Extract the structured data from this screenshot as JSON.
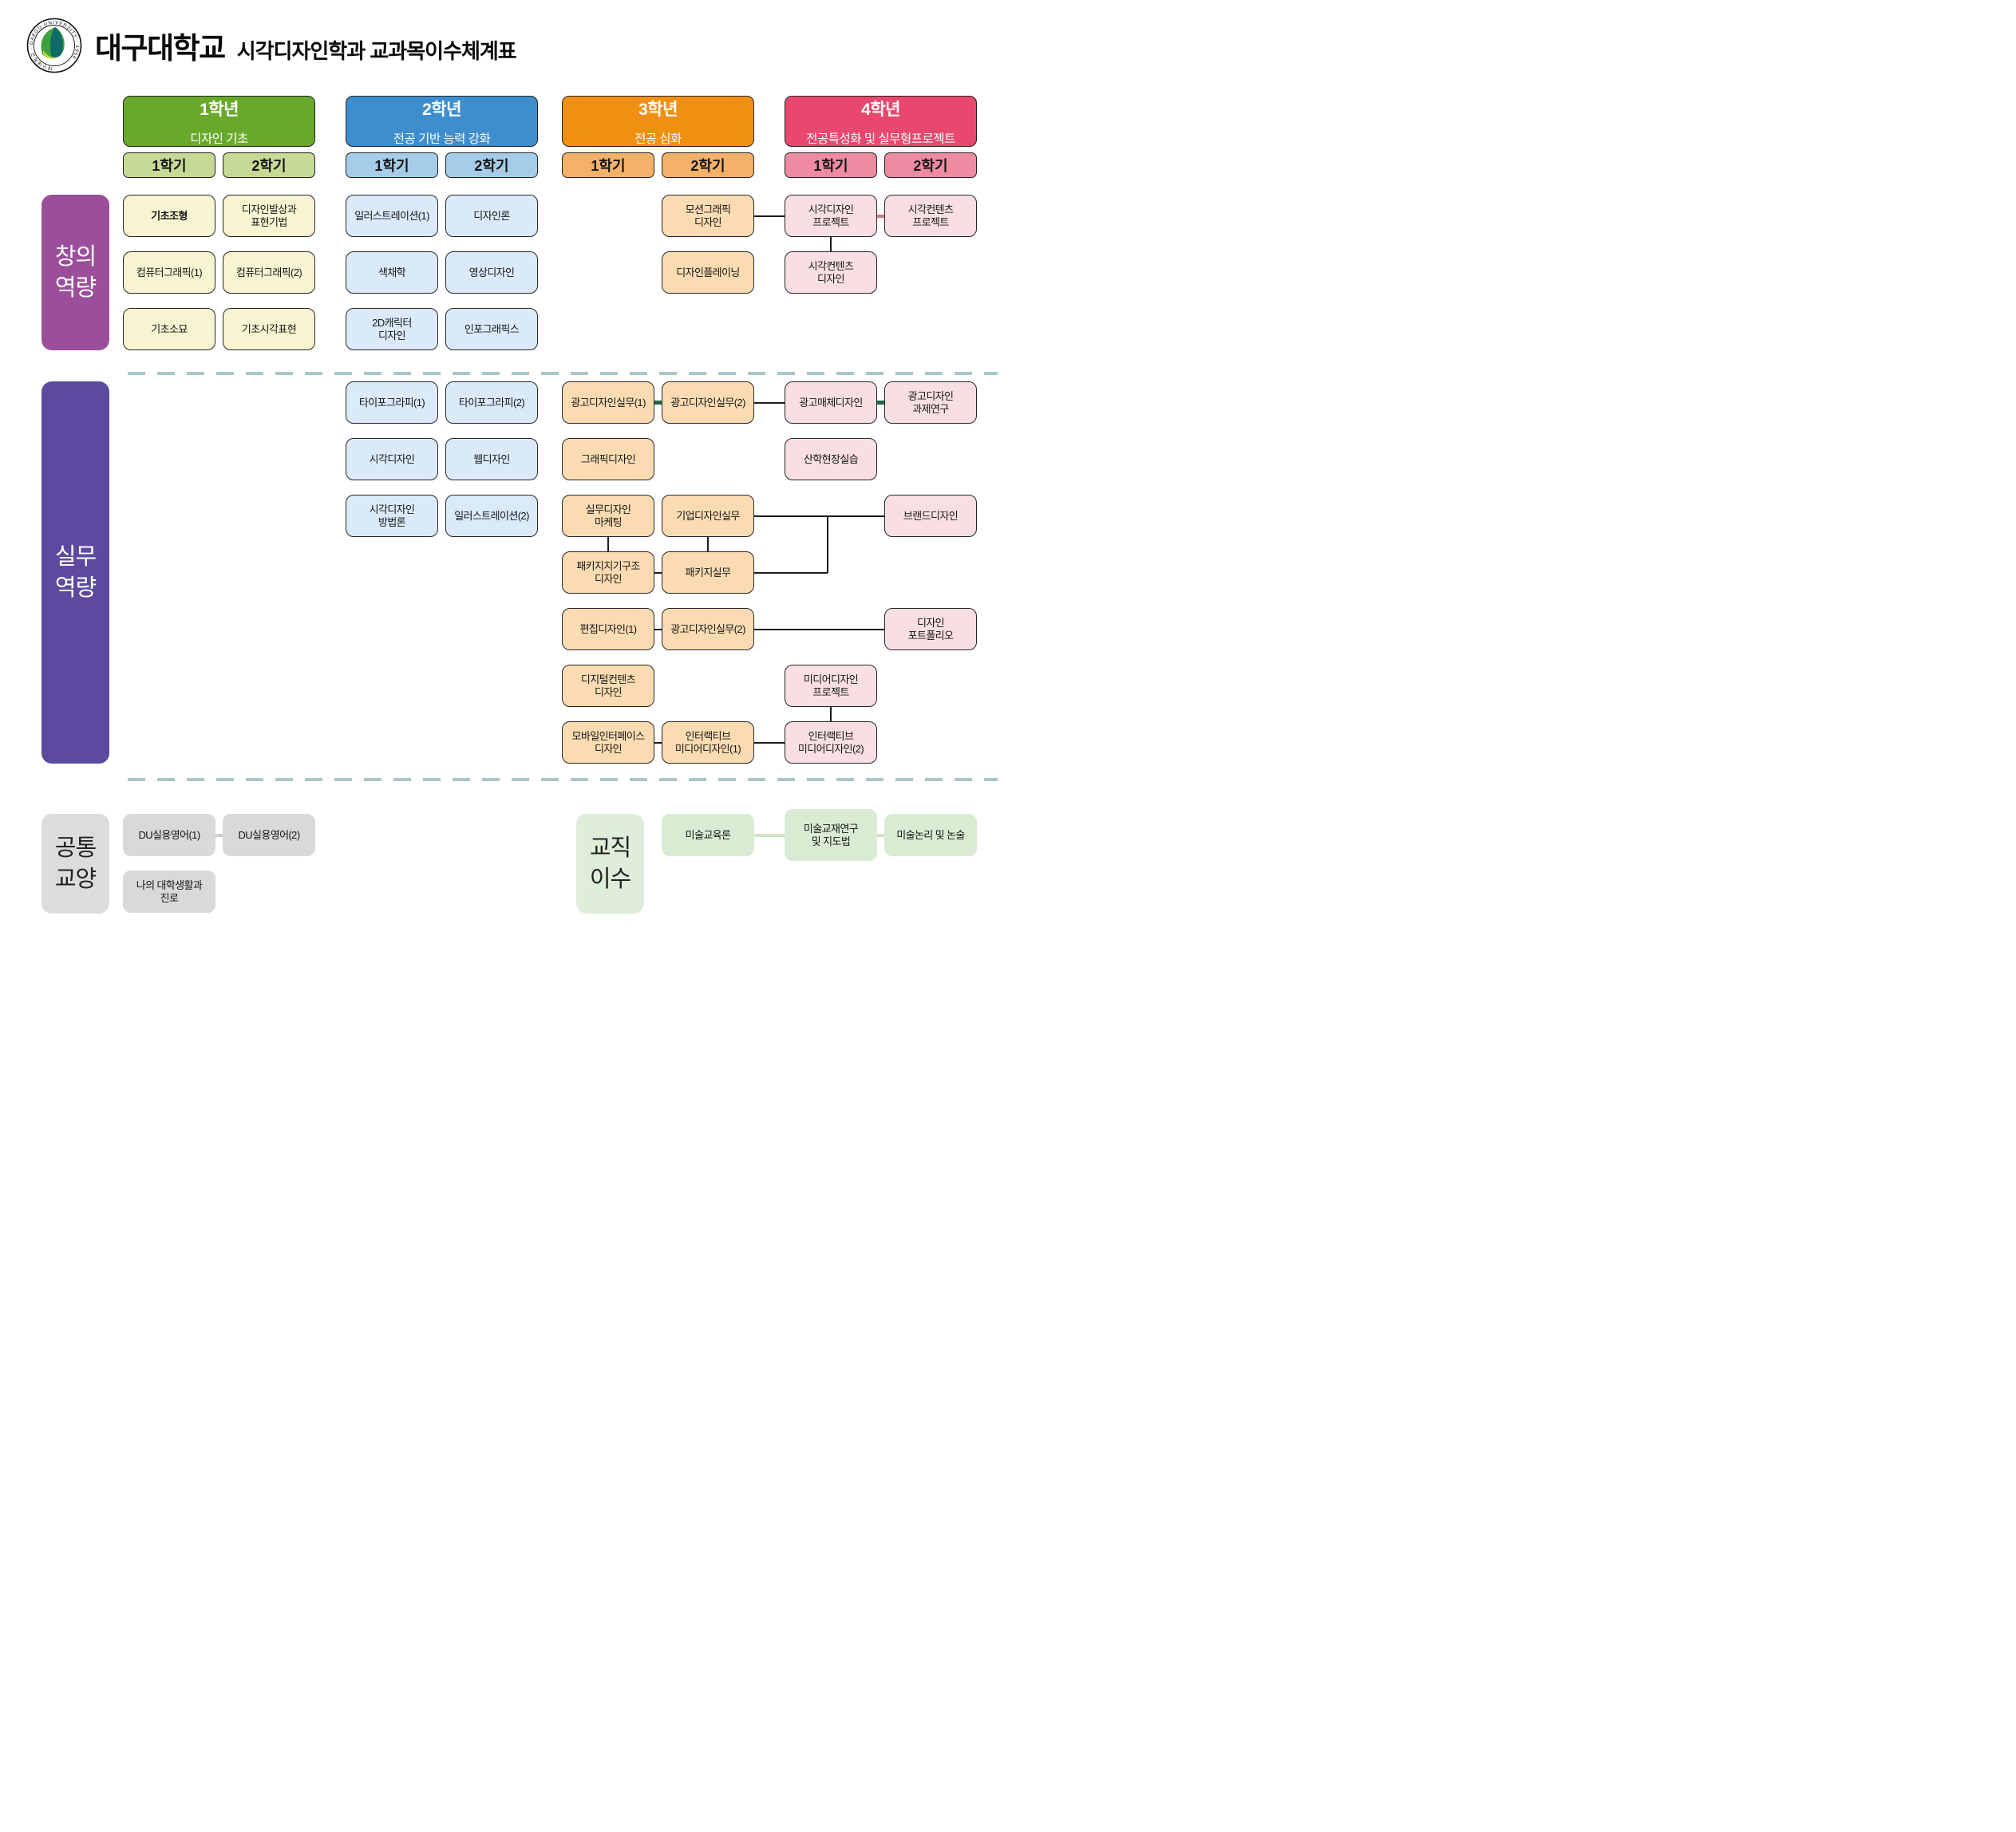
{
  "header": {
    "university": "대구대학교",
    "title": "시각디자인학과 교과목이수체계표",
    "logo_ring_text": "대구대학교 · DAEGU UNIVERSITY · 1956"
  },
  "years": [
    {
      "year": 1,
      "label": "1학년",
      "theme": "디자인 기초",
      "semesters": [
        "1학기",
        "2학기"
      ],
      "header_color": "#68a92c",
      "semester_color": "#c6da95",
      "course_color": "#f7f5d1"
    },
    {
      "year": 2,
      "label": "2학년",
      "theme": "전공 기반 능력 강화",
      "semesters": [
        "1학기",
        "2학기"
      ],
      "header_color": "#3e8ecd",
      "semester_color": "#a5cdea",
      "course_color": "#daeafa"
    },
    {
      "year": 3,
      "label": "3학년",
      "theme": "전공 심화",
      "semesters": [
        "1학기",
        "2학기"
      ],
      "header_color": "#ef9013",
      "semester_color": "#f4b169",
      "course_color": "#fbdcb2"
    },
    {
      "year": 4,
      "label": "4학년",
      "theme": "전공특성화 및 실무형프로젝트",
      "semesters": [
        "1학기",
        "2학기"
      ],
      "header_color": "#e8486e",
      "semester_color": "#ee8aa2",
      "course_color": "#f9dfe3"
    }
  ],
  "sections": [
    {
      "id": "creative",
      "label": "창의\n역량",
      "color": "#9b4f9b",
      "text_color": "#ffffff"
    },
    {
      "id": "practical",
      "label": "실무\n역량",
      "color": "#5b4a9d",
      "text_color": "#ffffff"
    },
    {
      "id": "liberal",
      "label": "공통\n교양",
      "color": "#dcdcdc",
      "text_color": "#222222",
      "course_color": "#d9d9d9"
    },
    {
      "id": "teaching",
      "label": "교직\n이수",
      "color": "#dfeeda",
      "text_color": "#222222",
      "course_color": "#d9ecd3"
    }
  ],
  "courses": [
    {
      "id": "basic-form",
      "section": "creative",
      "year": 1,
      "sem": 1,
      "row": 1,
      "label": "기초조형",
      "bold": true
    },
    {
      "id": "design-ideation",
      "section": "creative",
      "year": 1,
      "sem": 2,
      "row": 1,
      "label": "디자인발상과\n표현기법"
    },
    {
      "id": "computer-graphics-1",
      "section": "creative",
      "year": 1,
      "sem": 1,
      "row": 2,
      "label": "컴퓨터그래픽(1)"
    },
    {
      "id": "computer-graphics-2",
      "section": "creative",
      "year": 1,
      "sem": 2,
      "row": 2,
      "label": "컴퓨터그래픽(2)"
    },
    {
      "id": "basic-drawing",
      "section": "creative",
      "year": 1,
      "sem": 1,
      "row": 3,
      "label": "기초소묘"
    },
    {
      "id": "basic-visual-expression",
      "section": "creative",
      "year": 1,
      "sem": 2,
      "row": 3,
      "label": "기초시각표현"
    },
    {
      "id": "illustration-1",
      "section": "creative",
      "year": 2,
      "sem": 1,
      "row": 1,
      "label": "일러스트레이션(1)"
    },
    {
      "id": "design-theory",
      "section": "creative",
      "year": 2,
      "sem": 2,
      "row": 1,
      "label": "디자인론"
    },
    {
      "id": "chromatics",
      "section": "creative",
      "year": 2,
      "sem": 1,
      "row": 2,
      "label": "색채학"
    },
    {
      "id": "video-design",
      "section": "creative",
      "year": 2,
      "sem": 2,
      "row": 2,
      "label": "영상디자인"
    },
    {
      "id": "character-design-2d",
      "section": "creative",
      "year": 2,
      "sem": 1,
      "row": 3,
      "label": "2D캐릭터\n디자인"
    },
    {
      "id": "infographics",
      "section": "creative",
      "year": 2,
      "sem": 2,
      "row": 3,
      "label": "인포그래픽스"
    },
    {
      "id": "motion-graphic-design",
      "section": "creative",
      "year": 3,
      "sem": 2,
      "row": 1,
      "label": "모션그래픽\n디자인"
    },
    {
      "id": "design-planning",
      "section": "creative",
      "year": 3,
      "sem": 2,
      "row": 2,
      "label": "디자인플레이닝"
    },
    {
      "id": "visual-design-project",
      "section": "creative",
      "year": 4,
      "sem": 1,
      "row": 1,
      "label": "시각디자인\n프로젝트"
    },
    {
      "id": "visual-contents-design",
      "section": "creative",
      "year": 4,
      "sem": 1,
      "row": 2,
      "label": "시각컨텐츠\n디자인"
    },
    {
      "id": "visual-contents-project",
      "section": "creative",
      "year": 4,
      "sem": 2,
      "row": 1,
      "label": "시각컨텐츠\n프로젝트"
    },
    {
      "id": "typography-1",
      "section": "practical",
      "year": 2,
      "sem": 1,
      "row": 1,
      "label": "타이포그라피(1)"
    },
    {
      "id": "typography-2",
      "section": "practical",
      "year": 2,
      "sem": 2,
      "row": 1,
      "label": "타이포그라피(2)"
    },
    {
      "id": "visual-design",
      "section": "practical",
      "year": 2,
      "sem": 1,
      "row": 2,
      "label": "시각디자인"
    },
    {
      "id": "web-design",
      "section": "practical",
      "year": 2,
      "sem": 2,
      "row": 2,
      "label": "웹디자인"
    },
    {
      "id": "visual-design-methodology",
      "section": "practical",
      "year": 2,
      "sem": 1,
      "row": 3,
      "label": "시각디자인\n방법론"
    },
    {
      "id": "illustration-2",
      "section": "practical",
      "year": 2,
      "sem": 2,
      "row": 3,
      "label": "일러스트레이션(2)"
    },
    {
      "id": "ad-design-practice-1",
      "section": "practical",
      "year": 3,
      "sem": 1,
      "row": 1,
      "label": "광고디자인실무(1)"
    },
    {
      "id": "ad-design-practice-2",
      "section": "practical",
      "year": 3,
      "sem": 2,
      "row": 1,
      "label": "광고디자인실무(2)"
    },
    {
      "id": "graphic-design",
      "section": "practical",
      "year": 3,
      "sem": 1,
      "row": 2,
      "label": "그래픽디자인"
    },
    {
      "id": "practical-design-marketing",
      "section": "practical",
      "year": 3,
      "sem": 1,
      "row": 3,
      "label": "실무디자인\n마케팅"
    },
    {
      "id": "corporate-design-practice",
      "section": "practical",
      "year": 3,
      "sem": 2,
      "row": 3,
      "label": "기업디자인실무"
    },
    {
      "id": "package-structure-design",
      "section": "practical",
      "year": 3,
      "sem": 1,
      "row": 4,
      "label": "패키지지기구조\n디자인"
    },
    {
      "id": "package-practice",
      "section": "practical",
      "year": 3,
      "sem": 2,
      "row": 4,
      "label": "패키지실무"
    },
    {
      "id": "editorial-design-1",
      "section": "practical",
      "year": 3,
      "sem": 1,
      "row": 5,
      "label": "편집디자인(1)"
    },
    {
      "id": "ad-design-practice-2b",
      "section": "practical",
      "year": 3,
      "sem": 2,
      "row": 5,
      "label": "광고디자인실무(2)"
    },
    {
      "id": "digital-contents-design",
      "section": "practical",
      "year": 3,
      "sem": 1,
      "row": 6,
      "label": "디지털컨텐츠\n디자인"
    },
    {
      "id": "mobile-interface-design",
      "section": "practical",
      "year": 3,
      "sem": 1,
      "row": 7,
      "label": "모바일인터페이스\n디자인"
    },
    {
      "id": "interactive-media-design-1",
      "section": "practical",
      "year": 3,
      "sem": 2,
      "row": 7,
      "label": "인터랙티브\n미디어디자인(1)"
    },
    {
      "id": "ad-media-design",
      "section": "practical",
      "year": 4,
      "sem": 1,
      "row": 1,
      "label": "광고매체디자인"
    },
    {
      "id": "field-training",
      "section": "practical",
      "year": 4,
      "sem": 1,
      "row": 2,
      "label": "산학현장실습"
    },
    {
      "id": "media-design-project",
      "section": "practical",
      "year": 4,
      "sem": 1,
      "row": 6,
      "label": "미디어디자인\n프로젝트"
    },
    {
      "id": "interactive-media-design-2",
      "section": "practical",
      "year": 4,
      "sem": 1,
      "row": 7,
      "label": "인터랙티브\n미디어디자인(2)"
    },
    {
      "id": "ad-design-research",
      "section": "practical",
      "year": 4,
      "sem": 2,
      "row": 1,
      "label": "광고디자인\n과제연구"
    },
    {
      "id": "brand-design",
      "section": "practical",
      "year": 4,
      "sem": 2,
      "row": 3,
      "label": "브랜드디자인"
    },
    {
      "id": "design-portfolio",
      "section": "practical",
      "year": 4,
      "sem": 2,
      "row": 5,
      "label": "디자인\n포트폴리오"
    },
    {
      "id": "du-english-1",
      "section": "liberal",
      "year": 1,
      "sem": 1,
      "row": 1,
      "label": "DU실용영어(1)"
    },
    {
      "id": "du-english-2",
      "section": "liberal",
      "year": 1,
      "sem": 2,
      "row": 1,
      "label": "DU실용영어(2)"
    },
    {
      "id": "my-college-life",
      "section": "liberal",
      "year": 1,
      "sem": 1,
      "row": 2,
      "label": "나의 대학생활과\n진로"
    },
    {
      "id": "art-education-theory",
      "section": "teaching",
      "year": 3,
      "sem": 2,
      "row": 1,
      "label": "미술교육론"
    },
    {
      "id": "art-teaching-materials",
      "section": "teaching",
      "year": 4,
      "sem": 1,
      "row": 1,
      "label": "미술교재연구\n및 지도법",
      "tall": true
    },
    {
      "id": "art-logic-essay",
      "section": "teaching",
      "year": 4,
      "sem": 2,
      "row": 1,
      "label": "미술논리 및 논술"
    }
  ],
  "connectors": [
    {
      "from": "motion-graphic-design",
      "to": "visual-design-project",
      "color": "black",
      "style": "h"
    },
    {
      "from": "visual-design-project",
      "to": "visual-contents-project",
      "color": "rose",
      "style": "h"
    },
    {
      "from": "visual-design-project",
      "to": "visual-contents-design",
      "color": "black",
      "style": "v"
    },
    {
      "from": "ad-design-practice-1",
      "to": "ad-design-practice-2",
      "color": "green",
      "style": "h"
    },
    {
      "from": "ad-design-practice-2",
      "to": "ad-media-design",
      "color": "black",
      "style": "h"
    },
    {
      "from": "ad-media-design",
      "to": "ad-design-research",
      "color": "green",
      "style": "h"
    },
    {
      "from": "corporate-design-practice",
      "to": "brand-design",
      "color": "black",
      "style": "h"
    },
    {
      "from": "practical-design-marketing",
      "to": "package-structure-design",
      "color": "black",
      "style": "v"
    },
    {
      "from": "corporate-design-practice",
      "to": "package-practice",
      "color": "black",
      "style": "v"
    },
    {
      "from": "package-structure-design",
      "to": "package-practice",
      "color": "black",
      "style": "h"
    },
    {
      "from": "package-practice",
      "to": "brand-design",
      "color": "black",
      "style": "elbow-up"
    },
    {
      "from": "editorial-design-1",
      "to": "ad-design-practice-2b",
      "color": "black",
      "style": "h"
    },
    {
      "from": "ad-design-practice-2b",
      "to": "design-portfolio",
      "color": "black",
      "style": "h"
    },
    {
      "from": "media-design-project",
      "to": "interactive-media-design-2",
      "color": "black",
      "style": "v"
    },
    {
      "from": "mobile-interface-design",
      "to": "interactive-media-design-1",
      "color": "black",
      "style": "h"
    },
    {
      "from": "interactive-media-design-1",
      "to": "interactive-media-design-2",
      "color": "black",
      "style": "h"
    },
    {
      "from": "du-english-1",
      "to": "du-english-2",
      "color": "gray",
      "style": "h"
    },
    {
      "from": "art-education-theory",
      "to": "art-teaching-materials",
      "color": "lightgreen",
      "style": "h"
    },
    {
      "from": "art-teaching-materials",
      "to": "art-logic-essay",
      "color": "lightgreen",
      "style": "h"
    }
  ],
  "connector_colors": {
    "black": "#1c1c1c",
    "green": "#1d6a43",
    "rose": "#c67f86",
    "gray": "#cfcfcf",
    "lightgreen": "#cde4c5"
  },
  "divider_color": "#a9c7c6"
}
